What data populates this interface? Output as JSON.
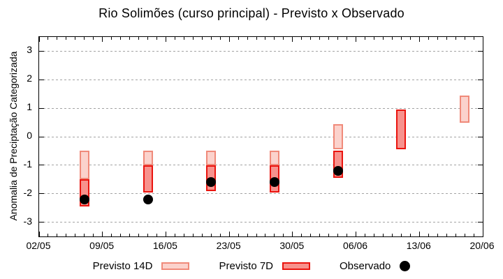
{
  "title": "Rio Solimões (curso principal) - Previsto x Observado",
  "colors": {
    "previsto14_fill": "#fbd2cc",
    "previsto14_border": "#f08a7a",
    "previsto7_fill": "#f7928d",
    "previsto7_border": "#ea140e",
    "observado": "#000000",
    "grid": "#a3a3a3",
    "axis": "#000000",
    "background": "#ffffff"
  },
  "legend": [
    {
      "label": "Previsto 14D",
      "swatch": "previsto14"
    },
    {
      "label": "Previsto 7D",
      "swatch": "previsto7"
    },
    {
      "label": "Observado",
      "swatch": "observado"
    }
  ],
  "chart_data": {
    "type": "bar",
    "subtype": "range-bars-with-scatter",
    "title": "Rio Solimões (curso principal) - Previsto x Observado",
    "xlabel": "",
    "ylabel": "Anomalia de Preciptação Categorizada",
    "ylim": [
      -3.5,
      3.5
    ],
    "yticks": [
      3,
      2,
      1,
      0,
      -1,
      -2,
      -3
    ],
    "xlim_days": [
      0,
      49
    ],
    "xticks": [
      {
        "day": 0,
        "label": "02/05"
      },
      {
        "day": 7,
        "label": "09/05"
      },
      {
        "day": 14,
        "label": "16/05"
      },
      {
        "day": 21,
        "label": "23/05"
      },
      {
        "day": 28,
        "label": "30/05"
      },
      {
        "day": 35,
        "label": "06/06"
      },
      {
        "day": 42,
        "label": "13/06"
      },
      {
        "day": 49,
        "label": "20/06"
      }
    ],
    "minor_xtick_every_days": 1,
    "grid": "horizontal-dashed",
    "legend_position": "bottom",
    "series": [
      {
        "name": "Previsto 14D",
        "type": "range-bar",
        "points": [
          {
            "date": "07/05",
            "day": 5,
            "low": -1.5,
            "high": -0.5
          },
          {
            "date": "14/05",
            "day": 12,
            "low": -1.0,
            "high": -0.5
          },
          {
            "date": "21/05",
            "day": 19,
            "low": -1.0,
            "high": -0.5
          },
          {
            "date": "28/05",
            "day": 26,
            "low": -1.0,
            "high": -0.5
          },
          {
            "date": "04/06",
            "day": 33,
            "low": -0.45,
            "high": 0.45
          },
          {
            "date": "18/06",
            "day": 47,
            "low": 0.5,
            "high": 1.45
          }
        ]
      },
      {
        "name": "Previsto 7D",
        "type": "range-bar",
        "points": [
          {
            "date": "07/05",
            "day": 5,
            "low": -2.45,
            "high": -1.5
          },
          {
            "date": "14/05",
            "day": 12,
            "low": -1.95,
            "high": -1.0
          },
          {
            "date": "21/05",
            "day": 19,
            "low": -1.9,
            "high": -1.0
          },
          {
            "date": "28/05",
            "day": 26,
            "low": -1.95,
            "high": -1.0
          },
          {
            "date": "04/06",
            "day": 33,
            "low": -1.45,
            "high": -0.5
          },
          {
            "date": "11/06",
            "day": 40,
            "low": -0.45,
            "high": 0.95
          }
        ]
      },
      {
        "name": "Observado",
        "type": "scatter",
        "points": [
          {
            "date": "07/05",
            "day": 5,
            "value": -2.2
          },
          {
            "date": "14/05",
            "day": 12,
            "value": -2.2
          },
          {
            "date": "21/05",
            "day": 19,
            "value": -1.6
          },
          {
            "date": "28/05",
            "day": 26,
            "value": -1.6
          },
          {
            "date": "04/06",
            "day": 33,
            "value": -1.2
          }
        ]
      }
    ]
  }
}
